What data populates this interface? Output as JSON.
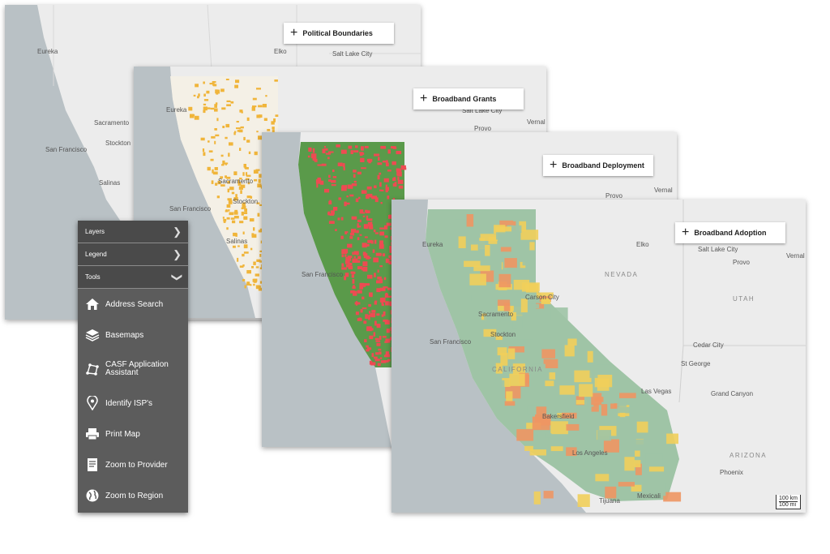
{
  "layers": {
    "political_boundaries": "Political Boundaries",
    "broadband_grants": "Broadband Grants",
    "broadband_deployment": "Broadband Deployment",
    "broadband_adoption": "Broadband Adoption"
  },
  "map_labels": {
    "eureka": "Eureka",
    "elko": "Elko",
    "salt_lake_city": "Salt Lake City",
    "sacramento": "Sacramento",
    "stockton": "Stockton",
    "san_francisco": "San Francisco",
    "salinas": "Salinas",
    "provo": "Provo",
    "vernal": "Vernal",
    "nevada": "NEVADA",
    "utah": "UTAH",
    "carson_city": "Carson City",
    "cedar_city": "Cedar City",
    "st_george": "St George",
    "las_vegas": "Las Vegas",
    "grand_canyon": "Grand Canyon",
    "california": "CALIFORNIA",
    "bakersfield": "Bakersfield",
    "los_angeles": "Los Angeles",
    "mexicali": "Mexicali",
    "tijuana": "Tijuana",
    "arizona": "ARIZONA",
    "phoenix": "Phoenix"
  },
  "scale": {
    "km": "100 km",
    "mi": "100 mi"
  },
  "tools_panel": {
    "layers": "Layers",
    "legend": "Legend",
    "tools": "Tools",
    "items": [
      {
        "label": "Address Search",
        "icon": "home-icon"
      },
      {
        "label": "Basemaps",
        "icon": "layers-icon"
      },
      {
        "label": "CASF Application Assistant",
        "icon": "polygon-icon"
      },
      {
        "label": "Identify ISP's",
        "icon": "map-pin-icon"
      },
      {
        "label": "Print Map",
        "icon": "printer-icon"
      },
      {
        "label": "Zoom to Provider",
        "icon": "document-icon"
      },
      {
        "label": "Zoom to Region",
        "icon": "globe-icon"
      }
    ]
  },
  "colors": {
    "ocean": "#b9c1c5",
    "land": "#ececec",
    "grant": "#f0b53a",
    "deploy_green": "#5a9a4a",
    "deploy_red": "#ee4b52",
    "adopt_green": "#9fc4a6",
    "adopt_yellow": "#f1cf5b",
    "adopt_orange": "#ee9663",
    "panel_bg": "#5c5c5c"
  }
}
